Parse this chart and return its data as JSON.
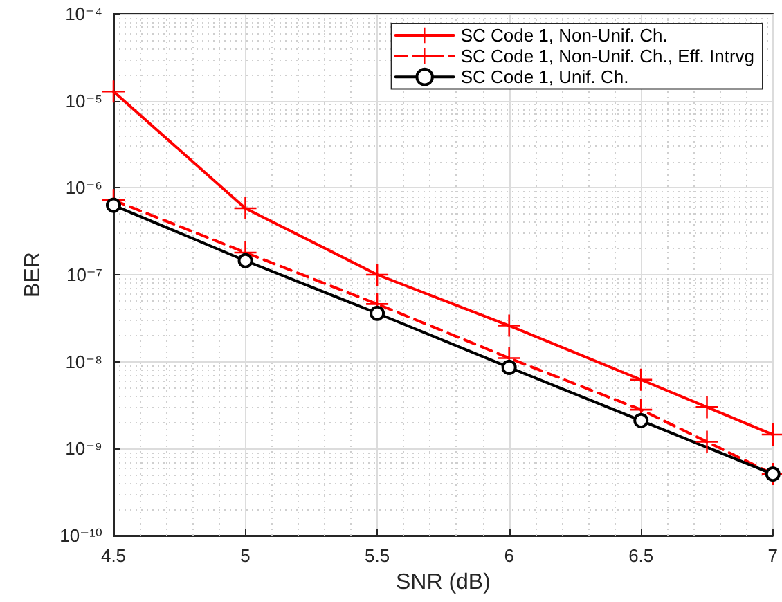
{
  "chart_data": {
    "type": "line",
    "xlabel": "SNR (dB)",
    "ylabel": "BER",
    "log": "y",
    "grid": true,
    "legend": "top right",
    "xlim": [
      4.5,
      7
    ],
    "xticks": [
      4.5,
      5,
      5.5,
      6,
      6.5,
      7
    ],
    "ylim": [
      1e-10,
      0.0001
    ],
    "yticks": [
      {
        "value": 1e-10,
        "label": "10⁻¹⁰"
      },
      {
        "value": 1e-09,
        "label": "10⁻⁹"
      },
      {
        "value": 1e-08,
        "label": "10⁻⁸"
      },
      {
        "value": 1e-07,
        "label": "10⁻⁷"
      },
      {
        "value": 1e-06,
        "label": "10⁻⁶"
      },
      {
        "value": 1e-05,
        "label": "10⁻⁵"
      },
      {
        "value": 0.0001,
        "label": "10⁻⁴"
      }
    ],
    "series": [
      {
        "name": "SC Code 1, Non-Unif. Ch.",
        "color": "#ff0000",
        "line_style": "solid",
        "marker": "cross",
        "x": [
          4.5,
          5,
          5.5,
          6,
          6.5,
          6.75,
          7
        ],
        "values": [
          1.28e-05,
          5.8e-07,
          1e-07,
          2.6e-08,
          6.2e-09,
          3e-09,
          1.45e-09
        ]
      },
      {
        "name": "SC Code 1, Non-Unif. Ch., Eff. Intrvg",
        "color": "#ff0000",
        "line_style": "dashed",
        "marker": "cross",
        "x": [
          4.5,
          5,
          5.5,
          6,
          6.5,
          6.75,
          7
        ],
        "values": [
          7.2e-07,
          1.8e-07,
          4.6e-08,
          1.1e-08,
          2.8e-09,
          1.2e-09,
          5.1e-10
        ]
      },
      {
        "name": "SC Code 1, Unif. Ch.",
        "color": "#000000",
        "line_style": "solid",
        "marker": "circle",
        "x": [
          4.5,
          5,
          5.5,
          6,
          6.5,
          7
        ],
        "values": [
          6.3e-07,
          1.45e-07,
          3.6e-08,
          8.6e-09,
          2.1e-09,
          5.1e-10
        ]
      }
    ]
  }
}
